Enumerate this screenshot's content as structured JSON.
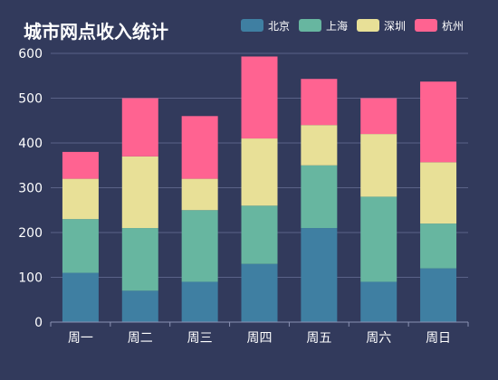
{
  "chart_data": {
    "type": "bar",
    "stacked": true,
    "title": "城市网点收入统计",
    "categories": [
      "周一",
      "周二",
      "周三",
      "周四",
      "周五",
      "周六",
      "周日"
    ],
    "series": [
      {
        "name": "北京",
        "color": "#3f7fa2",
        "values": [
          110,
          70,
          90,
          130,
          210,
          90,
          120
        ]
      },
      {
        "name": "上海",
        "color": "#67b6a0",
        "values": [
          120,
          140,
          160,
          130,
          140,
          190,
          100
        ]
      },
      {
        "name": "深圳",
        "color": "#e8e097",
        "values": [
          90,
          160,
          70,
          150,
          90,
          140,
          137
        ]
      },
      {
        "name": "杭州",
        "color": "#ff6391",
        "values": [
          60,
          130,
          140,
          183,
          103,
          80,
          180
        ]
      }
    ],
    "ylim": [
      0,
      600
    ],
    "yticks": [
      0,
      100,
      200,
      300,
      400,
      500,
      600
    ],
    "grid": true,
    "legend_position": "top-right",
    "background": "#323a5c"
  }
}
